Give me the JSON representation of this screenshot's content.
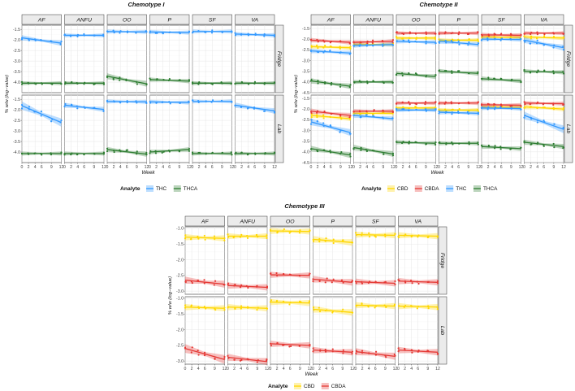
{
  "chart_data": [
    {
      "type": "scatter",
      "title": "Chemotype I",
      "xlabel": "Week",
      "ylabel": "% w/w (log−value)",
      "facets_col": [
        "AF",
        "ANFU",
        "OO",
        "P",
        "SF",
        "VA"
      ],
      "facets_row": [
        "Fridge",
        "Lab"
      ],
      "xlim": [
        0,
        12
      ],
      "ylim": [
        -4.5,
        -1.3
      ],
      "xticks": [
        0,
        2,
        4,
        6,
        9,
        12
      ],
      "xtick_labels": [
        "0",
        "2",
        "4",
        "6",
        "9",
        "12"
      ],
      "yticks": [
        -1.5,
        -2.0,
        -2.5,
        -3.0,
        -3.5,
        -4.0
      ],
      "ytick_labels": [
        "-1.5",
        "-2.0",
        "-2.5",
        "-3.0",
        "-3.5",
        "-4.0"
      ],
      "legend_title": "Analyte",
      "legend_position": "bottom",
      "series": [
        {
          "name": "THC",
          "color": "#3399ff",
          "lines": [
            [
              [
                -1.9,
                -2.15
              ],
              [
                -1.78,
                -1.78
              ],
              [
                -1.6,
                -1.62
              ],
              [
                -1.62,
                -1.65
              ],
              [
                -1.6,
                -1.6
              ],
              [
                -1.72,
                -1.78
              ]
            ],
            [
              [
                -1.8,
                -2.6
              ],
              [
                -1.78,
                -1.98
              ],
              [
                -1.6,
                -1.62
              ],
              [
                -1.62,
                -1.65
              ],
              [
                -1.6,
                -1.6
              ],
              [
                -1.78,
                -2.05
              ]
            ]
          ]
        },
        {
          "name": "THCA",
          "color": "#2e7d32",
          "lines": [
            [
              [
                -4.05,
                -4.05
              ],
              [
                -4.05,
                -4.05
              ],
              [
                -3.72,
                -4.08
              ],
              [
                -3.88,
                -3.95
              ],
              [
                -4.05,
                -4.05
              ],
              [
                -4.05,
                -4.05
              ]
            ],
            [
              [
                -4.07,
                -4.07
              ],
              [
                -4.07,
                -4.07
              ],
              [
                -3.88,
                -4.1
              ],
              [
                -4.0,
                -3.88
              ],
              [
                -4.07,
                -4.07
              ],
              [
                -4.07,
                -4.07
              ]
            ]
          ]
        }
      ]
    },
    {
      "type": "scatter",
      "title": "Chemotype II",
      "xlabel": "Week",
      "ylabel": "% w/w (log−value)",
      "facets_col": [
        "AF",
        "ANFU",
        "OO",
        "P",
        "SF",
        "VA"
      ],
      "facets_row": [
        "Fridge",
        "Lab"
      ],
      "xlim": [
        0,
        12
      ],
      "ylim": [
        -4.5,
        -1.35
      ],
      "xticks": [
        0,
        2,
        4,
        6,
        9,
        12
      ],
      "xtick_labels": [
        "0",
        "2",
        "4",
        "6",
        "9",
        "12"
      ],
      "yticks": [
        -1.5,
        -2.0,
        -2.5,
        -3.0,
        -3.5,
        -4.0,
        -4.5
      ],
      "ytick_labels": [
        "-1.5",
        "-2.0",
        "-2.5",
        "-3.0",
        "-3.5",
        "-4.0",
        "-4.5"
      ],
      "legend_title": "Analyte",
      "legend_position": "bottom",
      "series": [
        {
          "name": "CBD",
          "color": "#ffd700",
          "lines": [
            [
              [
                -2.35,
                -2.4
              ],
              [
                -2.25,
                -2.25
              ],
              [
                -1.95,
                -1.95
              ],
              [
                -2.05,
                -2.05
              ],
              [
                -1.9,
                -1.92
              ],
              [
                -1.9,
                -1.95
              ]
            ],
            [
              [
                -2.3,
                -2.45
              ],
              [
                -2.2,
                -2.2
              ],
              [
                -1.95,
                -1.95
              ],
              [
                -2.05,
                -2.05
              ],
              [
                -1.9,
                -1.92
              ],
              [
                -1.9,
                -2.0
              ]
            ]
          ]
        },
        {
          "name": "CBDA",
          "color": "#e53935",
          "lines": [
            [
              [
                -2.05,
                -2.15
              ],
              [
                -2.15,
                -2.1
              ],
              [
                -1.72,
                -1.72
              ],
              [
                -1.72,
                -1.72
              ],
              [
                -1.8,
                -1.82
              ],
              [
                -1.72,
                -1.72
              ]
            ],
            [
              [
                -2.1,
                -2.3
              ],
              [
                -2.1,
                -2.1
              ],
              [
                -1.72,
                -1.72
              ],
              [
                -1.72,
                -1.72
              ],
              [
                -1.8,
                -1.82
              ],
              [
                -1.72,
                -1.75
              ]
            ]
          ]
        },
        {
          "name": "THC",
          "color": "#3399ff",
          "lines": [
            [
              [
                -2.55,
                -2.65
              ],
              [
                -2.3,
                -2.25
              ],
              [
                -2.1,
                -2.15
              ],
              [
                -2.1,
                -2.25
              ],
              [
                -2.0,
                -2.02
              ],
              [
                -2.05,
                -2.4
              ]
            ],
            [
              [
                -2.6,
                -3.1
              ],
              [
                -2.3,
                -2.45
              ],
              [
                -2.05,
                -2.05
              ],
              [
                -2.15,
                -2.2
              ],
              [
                -1.95,
                -1.98
              ],
              [
                -2.3,
                -2.95
              ]
            ]
          ]
        },
        {
          "name": "THCA",
          "color": "#2e7d32",
          "lines": [
            [
              [
                -3.95,
                -4.2
              ],
              [
                -4.0,
                -4.0
              ],
              [
                -3.6,
                -3.75
              ],
              [
                -3.5,
                -3.6
              ],
              [
                -3.85,
                -3.95
              ],
              [
                -3.5,
                -3.55
              ]
            ],
            [
              [
                -3.85,
                -4.15
              ],
              [
                -3.8,
                -4.1
              ],
              [
                -3.55,
                -3.6
              ],
              [
                -3.6,
                -3.6
              ],
              [
                -3.75,
                -3.85
              ],
              [
                -3.55,
                -3.75
              ]
            ]
          ]
        }
      ]
    },
    {
      "type": "scatter",
      "title": "Chemotype III",
      "xlabel": "Week",
      "ylabel": "% w/w (log−value)",
      "facets_col": [
        "AF",
        "ANFU",
        "OO",
        "P",
        "SF",
        "VA"
      ],
      "facets_row": [
        "Fridge",
        "Lab"
      ],
      "xlim": [
        0,
        12
      ],
      "ylim": [
        -3.1,
        -0.95
      ],
      "xticks": [
        0,
        2,
        4,
        6,
        9,
        12
      ],
      "xtick_labels": [
        "0",
        "2",
        "4",
        "6",
        "9",
        "12"
      ],
      "yticks": [
        -1.0,
        -1.5,
        -2.0,
        -2.5,
        -3.0
      ],
      "ytick_labels": [
        "-1.0",
        "-1.5",
        "-2.0",
        "-2.5",
        "-3.0"
      ],
      "legend_title": "Analyte",
      "legend_position": "bottom",
      "series": [
        {
          "name": "CBD",
          "color": "#ffd700",
          "lines": [
            [
              [
                -1.28,
                -1.32
              ],
              [
                -1.25,
                -1.25
              ],
              [
                -1.08,
                -1.1
              ],
              [
                -1.35,
                -1.45
              ],
              [
                -1.2,
                -1.22
              ],
              [
                -1.22,
                -1.25
              ]
            ],
            [
              [
                -1.28,
                -1.32
              ],
              [
                -1.28,
                -1.32
              ],
              [
                -1.12,
                -1.15
              ],
              [
                -1.35,
                -1.45
              ],
              [
                -1.22,
                -1.25
              ],
              [
                -1.25,
                -1.28
              ]
            ]
          ]
        },
        {
          "name": "CBDA",
          "color": "#e53935",
          "lines": [
            [
              [
                -2.65,
                -2.78
              ],
              [
                -2.82,
                -2.88
              ],
              [
                -2.48,
                -2.5
              ],
              [
                -2.62,
                -2.72
              ],
              [
                -2.7,
                -2.75
              ],
              [
                -2.68,
                -2.72
              ]
            ],
            [
              [
                -2.6,
                -2.95
              ],
              [
                -2.88,
                -3.02
              ],
              [
                -2.45,
                -2.5
              ],
              [
                -2.65,
                -2.72
              ],
              [
                -2.7,
                -2.85
              ],
              [
                -2.65,
                -2.72
              ]
            ]
          ]
        }
      ]
    }
  ]
}
